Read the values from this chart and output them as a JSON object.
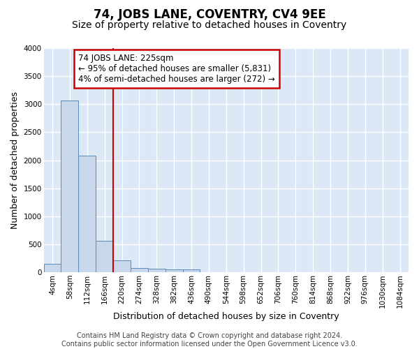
{
  "title": "74, JOBS LANE, COVENTRY, CV4 9EE",
  "subtitle": "Size of property relative to detached houses in Coventry",
  "xlabel": "Distribution of detached houses by size in Coventry",
  "ylabel": "Number of detached properties",
  "footnote": "Contains HM Land Registry data © Crown copyright and database right 2024.\nContains public sector information licensed under the Open Government Licence v3.0.",
  "bar_labels": [
    "4sqm",
    "58sqm",
    "112sqm",
    "166sqm",
    "220sqm",
    "274sqm",
    "328sqm",
    "382sqm",
    "436sqm",
    "490sqm",
    "544sqm",
    "598sqm",
    "652sqm",
    "706sqm",
    "760sqm",
    "814sqm",
    "868sqm",
    "922sqm",
    "976sqm",
    "1030sqm",
    "1084sqm"
  ],
  "bar_values": [
    150,
    3060,
    2080,
    560,
    215,
    80,
    60,
    50,
    45,
    0,
    0,
    0,
    0,
    0,
    0,
    0,
    0,
    0,
    0,
    0,
    0
  ],
  "bar_color": "#c8d8ea",
  "bar_edge_color": "#5a8ab8",
  "vline_color": "#cc0000",
  "vline_position": 3.5,
  "annotation_text": "74 JOBS LANE: 225sqm\n← 95% of detached houses are smaller (5,831)\n4% of semi-detached houses are larger (272) →",
  "annotation_box_color": "white",
  "annotation_box_edge_color": "#cc0000",
  "ylim": [
    0,
    4000
  ],
  "yticks": [
    0,
    500,
    1000,
    1500,
    2000,
    2500,
    3000,
    3500,
    4000
  ],
  "bg_color": "#dce8f5",
  "grid_color": "white",
  "title_fontsize": 12,
  "subtitle_fontsize": 10,
  "axis_label_fontsize": 9,
  "tick_fontsize": 7.5,
  "annotation_fontsize": 8.5,
  "footnote_fontsize": 7
}
